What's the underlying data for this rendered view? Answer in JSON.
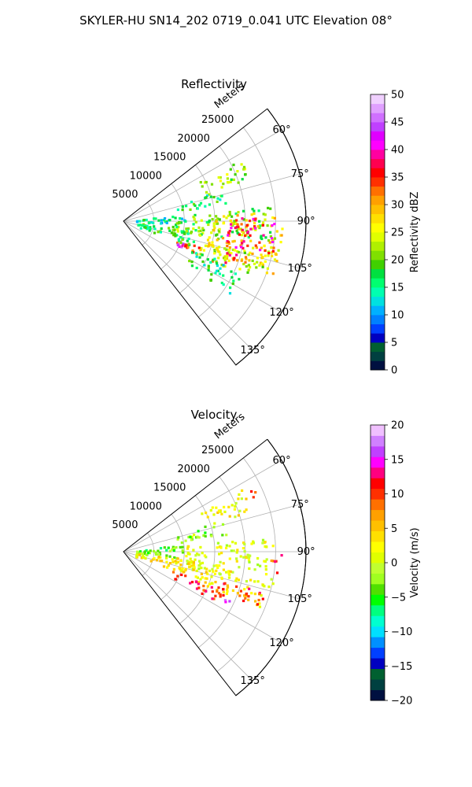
{
  "figure": {
    "suptitle": "SKYLER-HU  SN14_202  0719_0.041 UTC Elevation 08°"
  },
  "chart_data": [
    {
      "type": "heatmap",
      "projection": "polar-sector",
      "title": "Reflectivity",
      "range_axis_label": "Meters",
      "range_ticks": [
        5000,
        10000,
        15000,
        20000,
        25000
      ],
      "range_tick_labels": [
        "5000",
        "10000",
        "15000",
        "20000",
        "25000"
      ],
      "range_lim": [
        0,
        30000
      ],
      "azimuth_lim": [
        52,
        142
      ],
      "azimuth_ticks": [
        60,
        75,
        90,
        105,
        120,
        135
      ],
      "azimuth_tick_labels": [
        "60°",
        "75°",
        "90°",
        "105°",
        "120°",
        "135°"
      ],
      "grid": true,
      "colorbar": {
        "label": "Reflectivity dBZ",
        "vmin": 0,
        "vmax": 50,
        "ticks": [
          0,
          5,
          10,
          15,
          20,
          25,
          30,
          35,
          40,
          45,
          50
        ],
        "tick_labels": [
          "0",
          "5",
          "10",
          "15",
          "20",
          "25",
          "30",
          "35",
          "40",
          "45",
          "50"
        ],
        "colors": [
          "#001040",
          "#004040",
          "#006030",
          "#0000c0",
          "#0040ff",
          "#0080ff",
          "#00b0ff",
          "#00e0e0",
          "#00ffb0",
          "#00ff70",
          "#00e040",
          "#40d000",
          "#80e000",
          "#b0f000",
          "#e0ff00",
          "#ffff00",
          "#ffe000",
          "#ffc000",
          "#ffa000",
          "#ff7000",
          "#ff3000",
          "#ff0000",
          "#ff0050",
          "#ff00a0",
          "#ff00ff",
          "#e000ff",
          "#c040ff",
          "#d070ff",
          "#e0a0ff",
          "#f0d0ff"
        ]
      },
      "echoes": [
        {
          "az": [
            62,
            72
          ],
          "r": [
            14000,
            22000
          ],
          "dbz": 21
        },
        {
          "az": [
            72,
            80
          ],
          "r": [
            9000,
            17000
          ],
          "dbz": 17
        },
        {
          "az": [
            84,
            100
          ],
          "r": [
            8000,
            25000
          ],
          "dbz": 20
        },
        {
          "az": [
            86,
            110
          ],
          "r": [
            14000,
            26000
          ],
          "dbz": 27
        },
        {
          "az": [
            88,
            104
          ],
          "r": [
            17000,
            25000
          ],
          "dbz": 37
        },
        {
          "az": [
            104,
            114
          ],
          "r": [
            13000,
            24000
          ],
          "dbz": 24
        },
        {
          "az": [
            106,
            112
          ],
          "r": [
            17000,
            21000
          ],
          "dbz": 35
        },
        {
          "az": [
            108,
            114
          ],
          "r": [
            9000,
            16000
          ],
          "dbz": 33
        },
        {
          "az": [
            110,
            115
          ],
          "r": [
            8000,
            11000
          ],
          "dbz": 42
        },
        {
          "az": [
            96,
            110
          ],
          "r": [
            2000,
            12000
          ],
          "dbz": 18
        },
        {
          "az": [
            82,
            92
          ],
          "r": [
            2000,
            10000
          ],
          "dbz": 14
        },
        {
          "az": [
            112,
            124
          ],
          "r": [
            12000,
            21000
          ],
          "dbz": 16
        }
      ]
    },
    {
      "type": "heatmap",
      "projection": "polar-sector",
      "title": "Velocity",
      "range_axis_label": "Meters",
      "range_ticks": [
        5000,
        10000,
        15000,
        20000,
        25000
      ],
      "range_tick_labels": [
        "5000",
        "10000",
        "15000",
        "20000",
        "25000"
      ],
      "range_lim": [
        0,
        30000
      ],
      "azimuth_lim": [
        52,
        142
      ],
      "azimuth_ticks": [
        60,
        75,
        90,
        105,
        120,
        135
      ],
      "azimuth_tick_labels": [
        "60°",
        "75°",
        "90°",
        "105°",
        "120°",
        "135°"
      ],
      "grid": true,
      "colorbar": {
        "label": "Velocity (m/s)",
        "vmin": -20,
        "vmax": 20,
        "ticks": [
          -20,
          -15,
          -10,
          -5,
          0,
          5,
          10,
          15,
          20
        ],
        "tick_labels": [
          "−20",
          "−15",
          "−10",
          "−5",
          "0",
          "5",
          "10",
          "15",
          "20"
        ],
        "colors": [
          "#001040",
          "#004040",
          "#006030",
          "#0000c0",
          "#0040ff",
          "#0090ff",
          "#00e0ff",
          "#00ffd0",
          "#00ff80",
          "#00ff00",
          "#50e000",
          "#a0ff20",
          "#c0ff30",
          "#e0ff00",
          "#ffff00",
          "#ffe000",
          "#ffc000",
          "#ffa000",
          "#ff7000",
          "#ff3000",
          "#ff0000",
          "#ff0080",
          "#ff00ff",
          "#c040ff",
          "#d080ff",
          "#f0c0ff"
        ]
      },
      "echoes": [
        {
          "az": [
            62,
            72
          ],
          "r": [
            14000,
            22000
          ],
          "ms": 2
        },
        {
          "az": [
            64,
            68
          ],
          "r": [
            22000,
            24000
          ],
          "ms": 10
        },
        {
          "az": [
            72,
            80
          ],
          "r": [
            9000,
            17000
          ],
          "ms": -2
        },
        {
          "az": [
            82,
            96
          ],
          "r": [
            2000,
            10000
          ],
          "ms": -4
        },
        {
          "az": [
            84,
            104
          ],
          "r": [
            10000,
            25000
          ],
          "ms": 1
        },
        {
          "az": [
            90,
            98
          ],
          "r": [
            24000,
            26000
          ],
          "ms": 10
        },
        {
          "az": [
            100,
            112
          ],
          "r": [
            12000,
            24000
          ],
          "ms": 3
        },
        {
          "az": [
            106,
            112
          ],
          "r": [
            17000,
            24000
          ],
          "ms": 11
        },
        {
          "az": [
            110,
            118
          ],
          "r": [
            8000,
            18000
          ],
          "ms": 11
        },
        {
          "az": [
            112,
            116
          ],
          "r": [
            18000,
            20000
          ],
          "ms": 16
        },
        {
          "az": [
            96,
            110
          ],
          "r": [
            2000,
            12000
          ],
          "ms": 3
        }
      ]
    }
  ]
}
